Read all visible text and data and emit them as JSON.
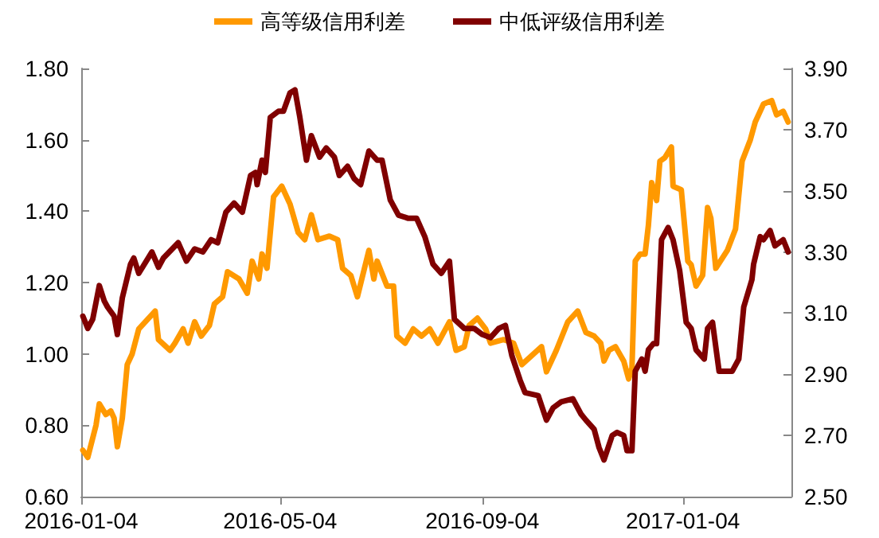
{
  "chart_data": {
    "type": "line",
    "xlim": [
      "2016-01-04",
      "2017-03-11"
    ],
    "xticks": [
      "2016-01-04",
      "2016-05-04",
      "2016-09-04",
      "2017-01-04"
    ],
    "ylim": [
      0.6,
      1.8
    ],
    "yticks": [
      {
        "value": 0.6,
        "label": "0.60"
      },
      {
        "value": 0.8,
        "label": "0.80"
      },
      {
        "value": 1.0,
        "label": "1.00"
      },
      {
        "value": 1.2,
        "label": "1.20"
      },
      {
        "value": 1.4,
        "label": "1.40"
      },
      {
        "value": 1.6,
        "label": "1.60"
      },
      {
        "value": 1.8,
        "label": "1.80"
      }
    ],
    "y2lim": [
      2.5,
      3.9
    ],
    "y2ticks": [
      {
        "value": 2.5,
        "label": "2.50"
      },
      {
        "value": 2.7,
        "label": "2.70"
      },
      {
        "value": 2.9,
        "label": "2.90"
      },
      {
        "value": 3.1,
        "label": "3.10"
      },
      {
        "value": 3.3,
        "label": "3.30"
      },
      {
        "value": 3.5,
        "label": "3.50"
      },
      {
        "value": 3.7,
        "label": "3.70"
      },
      {
        "value": 3.9,
        "label": "3.90"
      }
    ],
    "grid": false,
    "legend": "top",
    "marker": "none",
    "line_style": "solid",
    "series": [
      {
        "name": "高等级信用利差",
        "color": "#ff9900",
        "x": [
          "2016-01-05",
          "2016-01-08",
          "2016-01-13",
          "2016-01-15",
          "2016-01-19",
          "2016-01-22",
          "2016-01-24",
          "2016-01-26",
          "2016-01-29",
          "2016-02-01",
          "2016-02-04",
          "2016-02-08",
          "2016-02-18",
          "2016-02-20",
          "2016-02-27",
          "2016-03-01",
          "2016-03-06",
          "2016-03-09",
          "2016-03-13",
          "2016-03-17",
          "2016-03-22",
          "2016-03-25",
          "2016-03-30",
          "2016-04-02",
          "2016-04-09",
          "2016-04-14",
          "2016-04-17",
          "2016-04-21",
          "2016-04-23",
          "2016-04-26",
          "2016-04-30",
          "2016-05-05",
          "2016-05-10",
          "2016-05-15",
          "2016-05-19",
          "2016-05-23",
          "2016-05-27",
          "2016-06-03",
          "2016-06-08",
          "2016-06-11",
          "2016-06-16",
          "2016-06-20",
          "2016-06-27",
          "2016-06-30",
          "2016-07-02",
          "2016-07-08",
          "2016-07-12",
          "2016-07-14",
          "2016-07-19",
          "2016-07-24",
          "2016-07-29",
          "2016-08-03",
          "2016-08-08",
          "2016-08-15",
          "2016-08-19",
          "2016-08-24",
          "2016-08-27",
          "2016-09-01",
          "2016-09-06",
          "2016-09-09",
          "2016-09-17",
          "2016-09-23",
          "2016-09-28",
          "2016-10-10",
          "2016-10-13",
          "2016-10-19",
          "2016-10-26",
          "2016-11-01",
          "2016-11-06",
          "2016-11-11",
          "2016-11-15",
          "2016-11-17",
          "2016-11-20",
          "2016-11-24",
          "2016-11-29",
          "2016-12-02",
          "2016-12-04",
          "2016-12-06",
          "2016-12-09",
          "2016-12-12",
          "2016-12-14",
          "2016-12-16",
          "2016-12-19",
          "2016-12-21",
          "2016-12-24",
          "2016-12-28",
          "2016-12-29",
          "2017-01-03",
          "2017-01-07",
          "2017-01-09",
          "2017-01-12",
          "2017-01-16",
          "2017-01-19",
          "2017-01-21",
          "2017-01-24",
          "2017-01-31",
          "2017-02-05",
          "2017-02-09",
          "2017-02-14",
          "2017-02-17",
          "2017-02-22",
          "2017-02-27",
          "2017-03-02",
          "2017-03-06",
          "2017-03-09"
        ],
        "values": [
          0.73,
          0.71,
          0.8,
          0.86,
          0.83,
          0.84,
          0.82,
          0.74,
          0.82,
          0.97,
          1.0,
          1.07,
          1.12,
          1.04,
          1.01,
          1.03,
          1.07,
          1.03,
          1.09,
          1.05,
          1.08,
          1.14,
          1.16,
          1.23,
          1.21,
          1.17,
          1.26,
          1.21,
          1.28,
          1.24,
          1.44,
          1.47,
          1.42,
          1.34,
          1.32,
          1.39,
          1.32,
          1.33,
          1.32,
          1.24,
          1.22,
          1.16,
          1.29,
          1.21,
          1.26,
          1.19,
          1.19,
          1.05,
          1.03,
          1.07,
          1.05,
          1.07,
          1.03,
          1.09,
          1.01,
          1.02,
          1.08,
          1.1,
          1.07,
          1.03,
          1.04,
          1.03,
          0.97,
          1.02,
          0.95,
          1.01,
          1.09,
          1.12,
          1.06,
          1.05,
          1.03,
          0.98,
          1.01,
          1.02,
          0.98,
          0.93,
          0.96,
          1.26,
          1.28,
          1.28,
          1.36,
          1.48,
          1.43,
          1.54,
          1.55,
          1.58,
          1.47,
          1.46,
          1.26,
          1.25,
          1.19,
          1.22,
          1.41,
          1.38,
          1.24,
          1.29,
          1.35,
          1.54,
          1.6,
          1.65,
          1.7,
          1.71,
          1.67,
          1.68,
          1.65
        ]
      },
      {
        "name": "中低评级信用利差",
        "color": "#800000",
        "axis": "y2",
        "x": [
          "2016-01-05",
          "2016-01-08",
          "2016-01-11",
          "2016-01-15",
          "2016-01-18",
          "2016-01-20",
          "2016-01-24",
          "2016-01-26",
          "2016-01-29",
          "2016-02-03",
          "2016-02-05",
          "2016-02-08",
          "2016-02-16",
          "2016-02-20",
          "2016-02-23",
          "2016-03-03",
          "2016-03-08",
          "2016-03-13",
          "2016-03-18",
          "2016-03-23",
          "2016-03-27",
          "2016-04-01",
          "2016-04-06",
          "2016-04-11",
          "2016-04-16",
          "2016-04-19",
          "2016-04-20",
          "2016-04-23",
          "2016-04-25",
          "2016-04-28",
          "2016-05-03",
          "2016-05-06",
          "2016-05-10",
          "2016-05-13",
          "2016-05-16",
          "2016-05-20",
          "2016-05-23",
          "2016-05-28",
          "2016-06-01",
          "2016-06-06",
          "2016-06-09",
          "2016-06-14",
          "2016-06-18",
          "2016-06-22",
          "2016-06-27",
          "2016-07-02",
          "2016-07-05",
          "2016-07-10",
          "2016-07-15",
          "2016-07-21",
          "2016-07-26",
          "2016-07-31",
          "2016-08-05",
          "2016-08-10",
          "2016-08-15",
          "2016-08-18",
          "2016-08-24",
          "2016-08-30",
          "2016-09-04",
          "2016-09-09",
          "2016-09-14",
          "2016-09-18",
          "2016-09-22",
          "2016-09-27",
          "2016-09-30",
          "2016-10-08",
          "2016-10-13",
          "2016-10-17",
          "2016-10-22",
          "2016-10-29",
          "2016-11-03",
          "2016-11-06",
          "2016-11-11",
          "2016-11-14",
          "2016-11-17",
          "2016-11-22",
          "2016-11-25",
          "2016-11-29",
          "2016-12-01",
          "2016-12-04",
          "2016-12-06",
          "2016-12-10",
          "2016-12-12",
          "2016-12-14",
          "2016-12-17",
          "2016-12-19",
          "2016-12-22",
          "2016-12-26",
          "2016-12-29",
          "2017-01-02",
          "2017-01-06",
          "2017-01-09",
          "2017-01-12",
          "2017-01-17",
          "2017-01-19",
          "2017-01-22",
          "2017-01-26",
          "2017-02-03",
          "2017-02-07",
          "2017-02-10",
          "2017-02-15",
          "2017-02-16",
          "2017-02-20",
          "2017-02-22",
          "2017-02-26",
          "2017-03-01",
          "2017-03-06",
          "2017-03-09"
        ],
        "values": [
          3.09,
          3.05,
          3.08,
          3.19,
          3.14,
          3.12,
          3.09,
          3.03,
          3.15,
          3.26,
          3.28,
          3.23,
          3.3,
          3.25,
          3.28,
          3.33,
          3.27,
          3.31,
          3.3,
          3.34,
          3.33,
          3.43,
          3.46,
          3.43,
          3.55,
          3.56,
          3.52,
          3.6,
          3.56,
          3.74,
          3.76,
          3.76,
          3.82,
          3.83,
          3.74,
          3.6,
          3.68,
          3.61,
          3.64,
          3.61,
          3.55,
          3.58,
          3.54,
          3.52,
          3.63,
          3.6,
          3.6,
          3.47,
          3.42,
          3.41,
          3.41,
          3.35,
          3.26,
          3.23,
          3.27,
          3.08,
          3.05,
          3.05,
          3.03,
          3.02,
          3.05,
          3.06,
          2.96,
          2.88,
          2.84,
          2.83,
          2.75,
          2.79,
          2.81,
          2.82,
          2.77,
          2.75,
          2.72,
          2.66,
          2.62,
          2.7,
          2.71,
          2.7,
          2.65,
          2.65,
          2.91,
          2.95,
          2.91,
          2.98,
          3.0,
          3.0,
          3.34,
          3.38,
          3.34,
          3.24,
          3.07,
          3.05,
          2.98,
          2.95,
          3.05,
          3.07,
          2.91,
          2.91,
          2.95,
          3.12,
          3.21,
          3.26,
          3.35,
          3.34,
          3.37,
          3.32,
          3.34,
          3.3
        ]
      }
    ]
  }
}
